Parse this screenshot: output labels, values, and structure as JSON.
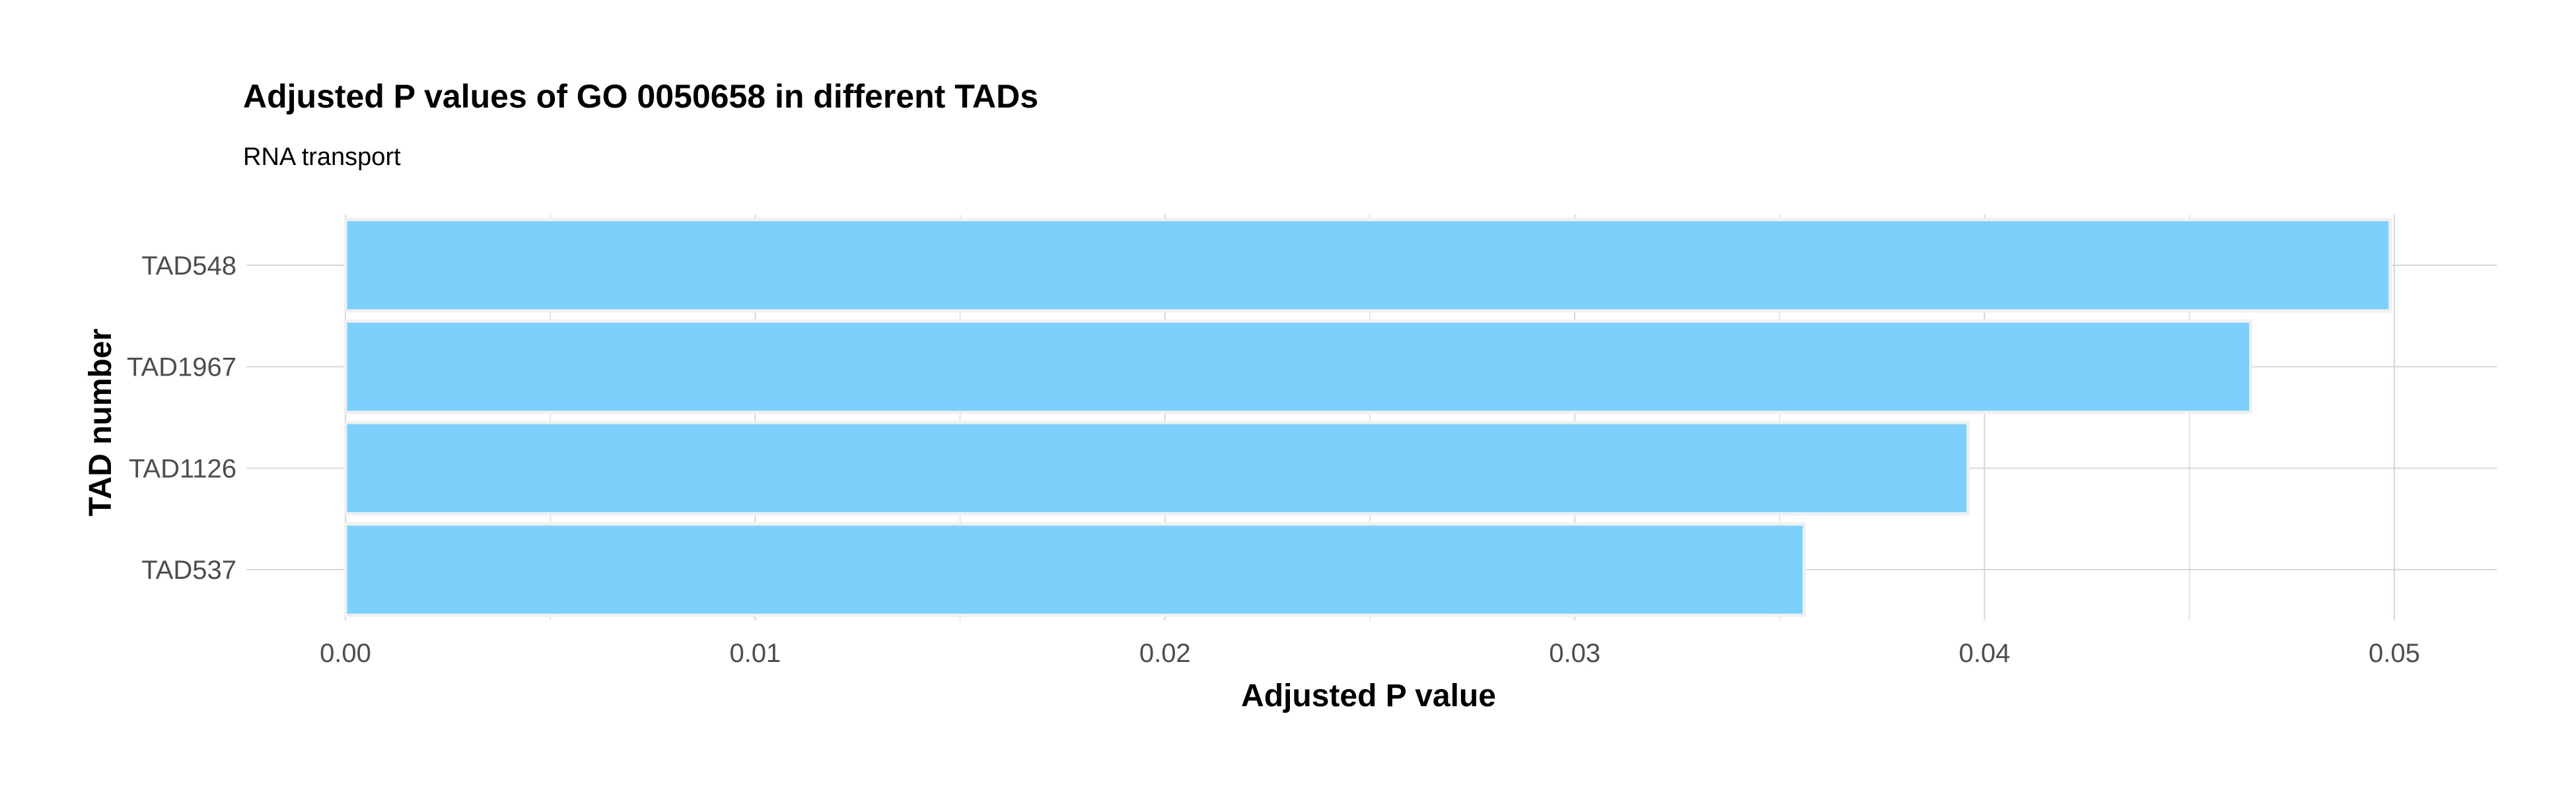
{
  "chart_data": {
    "type": "bar",
    "orientation": "horizontal",
    "title": "Adjusted P values of GO 0050658 in different TADs",
    "subtitle": "RNA transport",
    "xlabel": "Adjusted P value",
    "ylabel": "TAD number",
    "categories": [
      "TAD548",
      "TAD1967",
      "TAD1126",
      "TAD537"
    ],
    "values": [
      0.0499,
      0.0465,
      0.0396,
      0.0356
    ],
    "xlim": [
      0,
      0.0525
    ],
    "xticks": [
      0.0,
      0.01,
      0.02,
      0.03,
      0.04,
      0.05
    ],
    "xtick_labels": [
      "0.00",
      "0.01",
      "0.02",
      "0.03",
      "0.04",
      "0.05"
    ],
    "bar_color": "#77cffb",
    "grid": true,
    "legend": "none"
  }
}
